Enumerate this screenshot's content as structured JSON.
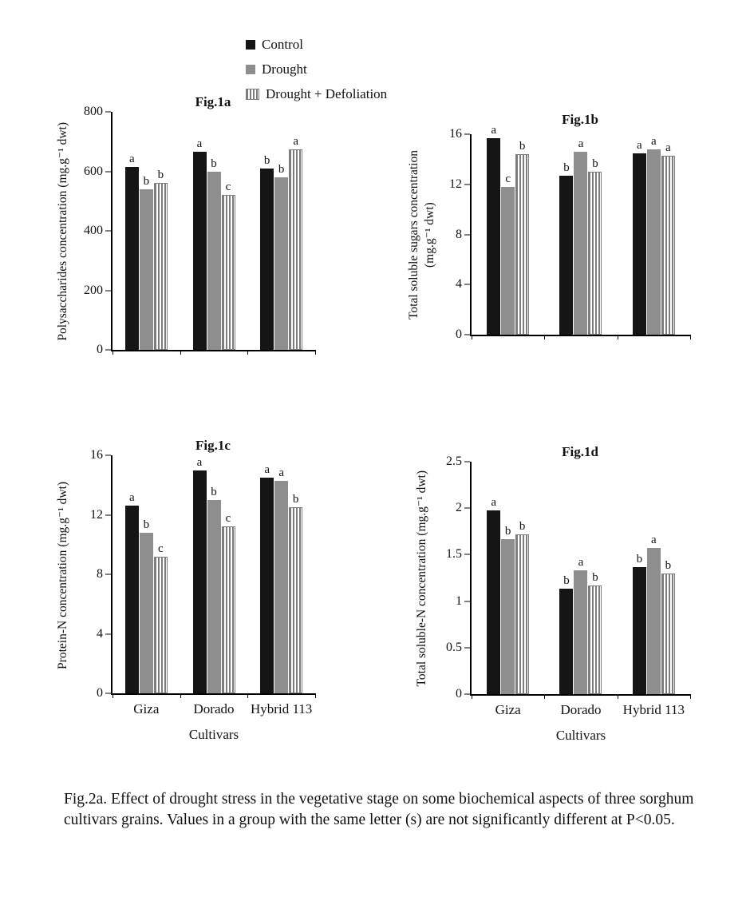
{
  "colors": {
    "control": "#151515",
    "drought": "#8e8e8e",
    "defoliation_stripe": "#7d7d7d",
    "axis": "#000000"
  },
  "legend": {
    "items": [
      {
        "label": "Control",
        "style": "control"
      },
      {
        "label": "Drought",
        "style": "drought"
      },
      {
        "label": "Drought + Defoliation",
        "style": "defoliation"
      }
    ]
  },
  "caption": "Fig.2a. Effect of drought stress in the vegetative stage on some biochemical aspects of three sorghum cultivars grains. Values in a group with the same letter (s) are not significantly different at P<0.05.",
  "chart_data": [
    {
      "type": "bar",
      "title": "Fig.1a",
      "ylabel": "Polysaccharides concentration (mg.g⁻¹ dwt)",
      "xlabel": "",
      "categories": [
        "Giza",
        "Dorado",
        "Hybrid 113"
      ],
      "series": [
        {
          "name": "Control",
          "style": "control",
          "values": [
            615,
            665,
            610
          ],
          "letters": [
            "a",
            "a",
            "b"
          ]
        },
        {
          "name": "Drought",
          "style": "drought",
          "values": [
            540,
            600,
            580
          ],
          "letters": [
            "b",
            "b",
            "b"
          ]
        },
        {
          "name": "Drought + Defoliation",
          "style": "defoliation",
          "values": [
            560,
            520,
            675
          ],
          "letters": [
            "b",
            "c",
            "a"
          ]
        }
      ],
      "ylim": [
        0,
        800
      ],
      "yticks": [
        0,
        200,
        400,
        600,
        800
      ],
      "show_x_labels": false,
      "grid": false,
      "legend_position": "shared-top"
    },
    {
      "type": "bar",
      "title": "Fig.1b",
      "ylabel": "Total soluble sugars concentration (mg.g⁻¹ dwt)",
      "xlabel": "",
      "categories": [
        "Giza",
        "Dorado",
        "Hybrid 113"
      ],
      "series": [
        {
          "name": "Control",
          "style": "control",
          "values": [
            15.7,
            12.7,
            14.5
          ],
          "letters": [
            "a",
            "b",
            "a"
          ]
        },
        {
          "name": "Drought",
          "style": "drought",
          "values": [
            11.8,
            14.6,
            14.8
          ],
          "letters": [
            "c",
            "a",
            "a"
          ]
        },
        {
          "name": "Drought + Defoliation",
          "style": "defoliation",
          "values": [
            14.4,
            13.0,
            14.3
          ],
          "letters": [
            "b",
            "b",
            "a"
          ]
        }
      ],
      "ylim": [
        0,
        16
      ],
      "yticks": [
        0,
        4,
        8,
        12,
        16
      ],
      "show_x_labels": false,
      "grid": false,
      "legend_position": "shared-top"
    },
    {
      "type": "bar",
      "title": "Fig.1c",
      "ylabel": "Protein-N concentration (mg.g⁻¹ dwt)",
      "xlabel": "Cultivars",
      "categories": [
        "Giza",
        "Dorado",
        "Hybrid 113"
      ],
      "series": [
        {
          "name": "Control",
          "style": "control",
          "values": [
            12.6,
            15.0,
            14.5
          ],
          "letters": [
            "a",
            "a",
            "a"
          ]
        },
        {
          "name": "Drought",
          "style": "drought",
          "values": [
            10.8,
            13.0,
            14.3
          ],
          "letters": [
            "b",
            "b",
            "a"
          ]
        },
        {
          "name": "Drought + Defoliation",
          "style": "defoliation",
          "values": [
            9.2,
            11.2,
            12.5
          ],
          "letters": [
            "c",
            "c",
            "b"
          ]
        }
      ],
      "ylim": [
        0,
        16
      ],
      "yticks": [
        0,
        4,
        8,
        12,
        16
      ],
      "show_x_labels": true,
      "grid": false,
      "legend_position": "shared-top"
    },
    {
      "type": "bar",
      "title": "Fig.1d",
      "ylabel": "Total soluble-N concentration (mg.g⁻¹ dwt)",
      "xlabel": "Cultivars",
      "categories": [
        "Giza",
        "Dorado",
        "Hybrid 113"
      ],
      "series": [
        {
          "name": "Control",
          "style": "control",
          "values": [
            1.98,
            1.13,
            1.37
          ],
          "letters": [
            "a",
            "b",
            "b"
          ]
        },
        {
          "name": "Drought",
          "style": "drought",
          "values": [
            1.67,
            1.33,
            1.57
          ],
          "letters": [
            "b",
            "a",
            "a"
          ]
        },
        {
          "name": "Drought + Defoliation",
          "style": "defoliation",
          "values": [
            1.72,
            1.17,
            1.3
          ],
          "letters": [
            "b",
            "b",
            "b"
          ]
        }
      ],
      "ylim": [
        0,
        2.5
      ],
      "yticks": [
        0,
        0.5,
        1,
        1.5,
        2,
        2.5
      ],
      "show_x_labels": true,
      "grid": false,
      "legend_position": "shared-top"
    }
  ]
}
